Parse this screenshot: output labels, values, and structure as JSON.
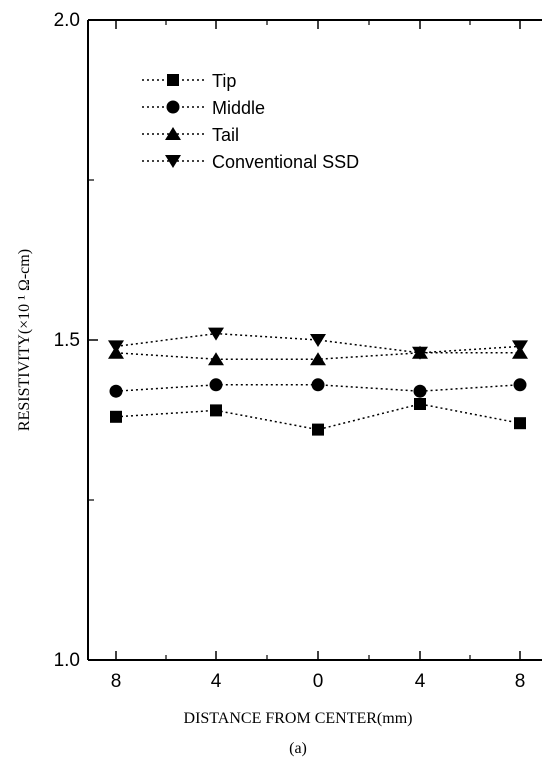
{
  "chart_data": {
    "type": "line",
    "categories": [
      "8",
      "4",
      "0",
      "4",
      "8"
    ],
    "series": [
      {
        "name": "Tip",
        "marker": "square",
        "values": [
          1.38,
          1.39,
          1.36,
          1.4,
          1.37
        ]
      },
      {
        "name": "Middle",
        "marker": "circle",
        "values": [
          1.42,
          1.43,
          1.43,
          1.42,
          1.43
        ]
      },
      {
        "name": "Tail",
        "marker": "triangle-up",
        "values": [
          1.48,
          1.47,
          1.47,
          1.48,
          1.48
        ]
      },
      {
        "name": "Conventional SSD",
        "marker": "triangle-down",
        "values": [
          1.49,
          1.51,
          1.5,
          1.48,
          1.49
        ]
      }
    ],
    "xlabel": "DISTANCE FROM CENTER(mm)",
    "ylabel": "RESISTIVITY(×10 ¹ Ω-cm)",
    "ylim": [
      1.0,
      2.0
    ],
    "y_ticks": [
      "1.0",
      "1.5",
      "2.0"
    ],
    "caption": "(a)",
    "legend_position": "top-left",
    "grid": false,
    "colors": {
      "line": "#000000",
      "marker": "#000000"
    }
  }
}
